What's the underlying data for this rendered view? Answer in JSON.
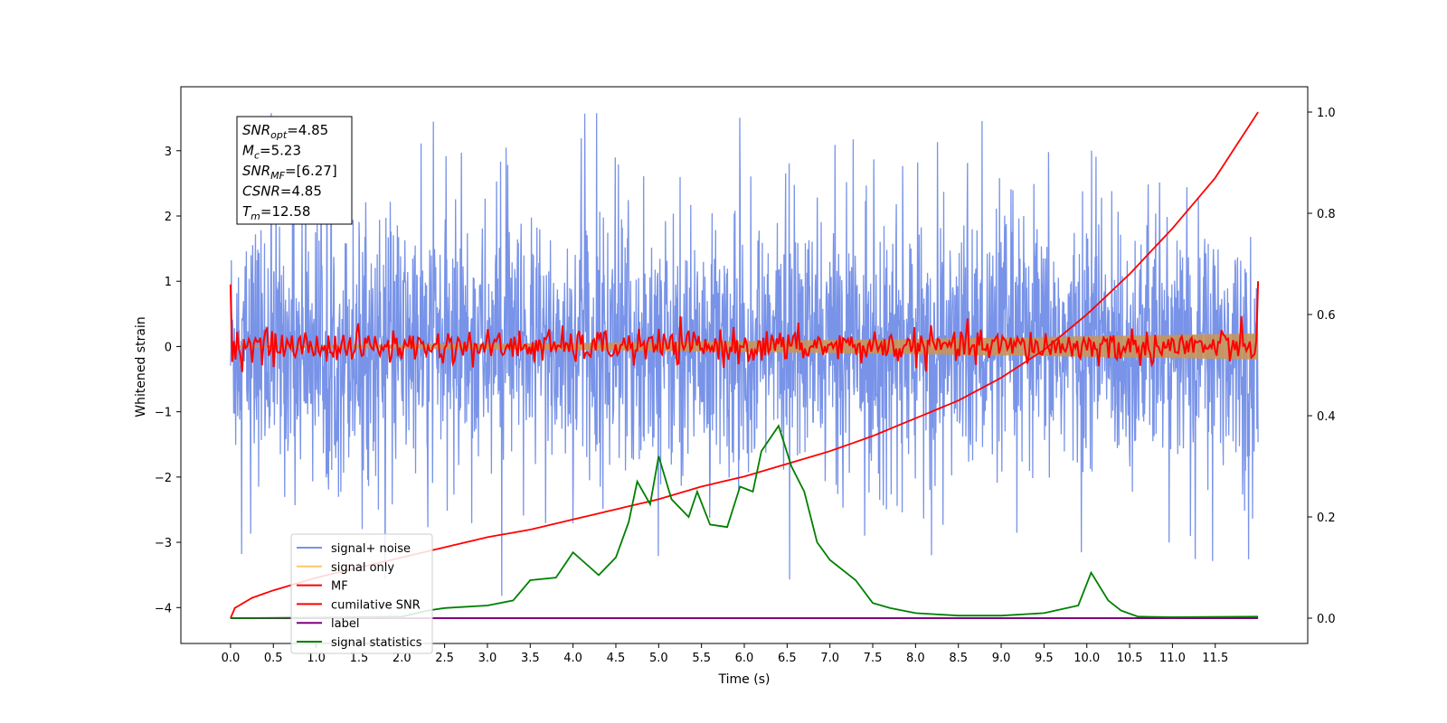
{
  "chart_data": {
    "type": "line",
    "title": "",
    "xlabel": "Time (s)",
    "ylabel": "Whitened strain",
    "xlim": [
      -0.58,
      12.58
    ],
    "ylim": [
      -4.55,
      3.98
    ],
    "y2lim": [
      -0.05,
      1.05
    ],
    "x_ticks": [
      0.0,
      0.5,
      1.0,
      1.5,
      2.0,
      2.5,
      3.0,
      3.5,
      4.0,
      4.5,
      5.0,
      5.5,
      6.0,
      6.5,
      7.0,
      7.5,
      8.0,
      8.5,
      9.0,
      9.5,
      10.0,
      10.5,
      11.0,
      11.5
    ],
    "x_tick_labels": [
      "0.0",
      "0.5",
      "1.0",
      "1.5",
      "2.0",
      "2.5",
      "3.0",
      "3.5",
      "4.0",
      "4.5",
      "5.0",
      "5.5",
      "6.0",
      "6.5",
      "7.0",
      "7.5",
      "8.0",
      "8.5",
      "9.0",
      "9.5",
      "10.0",
      "10.5",
      "11.0",
      "11.5"
    ],
    "y_ticks": [
      -4,
      -3,
      -2,
      -1,
      0,
      1,
      2,
      3
    ],
    "y_tick_labels": [
      "−4",
      "−3",
      "−2",
      "−1",
      "0",
      "1",
      "2",
      "3"
    ],
    "y2_ticks": [
      0.0,
      0.2,
      0.4,
      0.6,
      0.8,
      1.0
    ],
    "y2_tick_labels": [
      "0.0",
      "0.2",
      "0.4",
      "0.6",
      "0.8",
      "1.0"
    ],
    "grid": false,
    "legend_placement": "lower-left",
    "stats_box": {
      "lines": [
        {
          "sym": "SNR",
          "sub": "opt",
          "val": "=4.85"
        },
        {
          "sym": "M",
          "sub": "c",
          "val": "=5.23"
        },
        {
          "sym": "SNR",
          "sub": "MF",
          "val": "=[6.27]"
        },
        {
          "sym": "CSNR",
          "sub": "",
          "val": "=4.85"
        },
        {
          "sym": "T",
          "sub": "m",
          "val": "=12.58"
        }
      ]
    },
    "series": [
      {
        "name": "signal+ noise",
        "color": "#7893e8",
        "axis": "left",
        "kind": "noise",
        "x_range": [
          0.0,
          12.0
        ],
        "envelope_upper": 2.0,
        "envelope_lower": -2.0,
        "peak_max": 3.6,
        "peak_min": -4.15
      },
      {
        "name": "signal only",
        "color": "#ffc56b",
        "axis": "left",
        "kind": "band",
        "x_range": [
          0.0,
          12.0
        ],
        "amplitude_start": 0.02,
        "amplitude_end": 0.2
      },
      {
        "name": "MF",
        "color": "#ff0000",
        "axis": "left",
        "kind": "jitter",
        "x_range": [
          0.0,
          12.0
        ],
        "start_value": 0.95,
        "end_value": 1.0,
        "spread": 0.13
      },
      {
        "name": "cumilative SNR",
        "color": "#ff0000",
        "axis": "right",
        "points": [
          [
            0.0,
            0.0
          ],
          [
            0.05,
            0.02
          ],
          [
            0.25,
            0.04
          ],
          [
            0.5,
            0.055
          ],
          [
            1.0,
            0.08
          ],
          [
            1.5,
            0.1
          ],
          [
            2.0,
            0.12
          ],
          [
            2.5,
            0.14
          ],
          [
            3.0,
            0.16
          ],
          [
            3.5,
            0.175
          ],
          [
            4.0,
            0.195
          ],
          [
            4.5,
            0.215
          ],
          [
            5.0,
            0.235
          ],
          [
            5.5,
            0.26
          ],
          [
            6.0,
            0.28
          ],
          [
            6.5,
            0.305
          ],
          [
            7.0,
            0.33
          ],
          [
            7.5,
            0.36
          ],
          [
            8.0,
            0.395
          ],
          [
            8.5,
            0.43
          ],
          [
            9.0,
            0.475
          ],
          [
            9.5,
            0.53
          ],
          [
            10.0,
            0.6
          ],
          [
            10.5,
            0.68
          ],
          [
            11.0,
            0.77
          ],
          [
            11.5,
            0.87
          ],
          [
            12.0,
            1.0
          ]
        ]
      },
      {
        "name": "label",
        "color": "#800080",
        "axis": "right",
        "points": [
          [
            0.0,
            0.0
          ],
          [
            12.0,
            0.0
          ]
        ]
      },
      {
        "name": "signal statistics",
        "color": "#008000",
        "axis": "right",
        "points": [
          [
            0.0,
            0.0
          ],
          [
            1.0,
            0.001
          ],
          [
            2.0,
            0.003
          ],
          [
            2.3,
            0.015
          ],
          [
            2.5,
            0.02
          ],
          [
            3.0,
            0.025
          ],
          [
            3.3,
            0.035
          ],
          [
            3.5,
            0.075
          ],
          [
            3.8,
            0.08
          ],
          [
            4.0,
            0.13
          ],
          [
            4.2,
            0.1
          ],
          [
            4.3,
            0.085
          ],
          [
            4.5,
            0.12
          ],
          [
            4.65,
            0.19
          ],
          [
            4.75,
            0.27
          ],
          [
            4.9,
            0.225
          ],
          [
            5.0,
            0.32
          ],
          [
            5.15,
            0.235
          ],
          [
            5.35,
            0.2
          ],
          [
            5.45,
            0.25
          ],
          [
            5.6,
            0.185
          ],
          [
            5.8,
            0.18
          ],
          [
            5.95,
            0.26
          ],
          [
            6.1,
            0.25
          ],
          [
            6.2,
            0.33
          ],
          [
            6.4,
            0.38
          ],
          [
            6.55,
            0.3
          ],
          [
            6.7,
            0.25
          ],
          [
            6.85,
            0.15
          ],
          [
            7.0,
            0.115
          ],
          [
            7.3,
            0.075
          ],
          [
            7.5,
            0.03
          ],
          [
            7.7,
            0.02
          ],
          [
            8.0,
            0.01
          ],
          [
            8.5,
            0.005
          ],
          [
            9.0,
            0.005
          ],
          [
            9.5,
            0.01
          ],
          [
            9.9,
            0.025
          ],
          [
            10.05,
            0.09
          ],
          [
            10.25,
            0.035
          ],
          [
            10.4,
            0.015
          ],
          [
            10.6,
            0.003
          ],
          [
            11.0,
            0.002
          ],
          [
            12.0,
            0.003
          ]
        ]
      }
    ]
  }
}
